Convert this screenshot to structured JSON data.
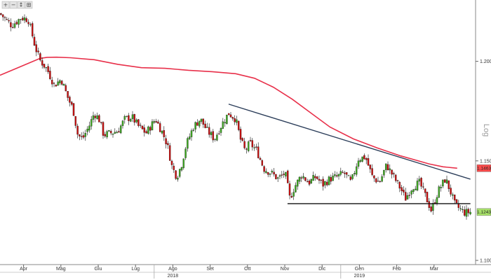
{
  "toolbar": {
    "buttons": [
      {
        "name": "zoom-in-button",
        "glyph": "+"
      },
      {
        "name": "zoom-out-button",
        "glyph": "−"
      },
      {
        "name": "reset-zoom-button",
        "glyph": "↕"
      },
      {
        "name": "crosshair-button",
        "glyph": "⊞"
      }
    ]
  },
  "chart_data": {
    "type": "candlestick",
    "x_labels": [
      "Apr",
      "Mag",
      "Giu",
      "Lug",
      "Ago",
      "Set",
      "Ott",
      "Nov",
      "Dic",
      "Gen",
      "Feb",
      "Mar"
    ],
    "years": [
      "2018",
      "2019"
    ],
    "y_ticks": [
      "1.2000",
      "1.1500",
      "1.1000"
    ],
    "scale_label": "Log",
    "ylim": [
      1.1,
      1.228
    ],
    "last_price": "1.1243",
    "ma_last": "1.1463",
    "colors": {
      "up": "#3faa22",
      "down": "#cc1010",
      "ma": "#e8304a",
      "trendline": "#2c3e5a",
      "support": "#111111",
      "price_tag": "#a9e36a",
      "ma_tag": "#ff4b4b"
    },
    "moving_average": [
      [
        0,
        1.193
      ],
      [
        0.03,
        1.196
      ],
      [
        0.06,
        1.199
      ],
      [
        0.085,
        1.2015
      ],
      [
        0.1,
        1.202
      ],
      [
        0.12,
        1.2021
      ],
      [
        0.15,
        1.2018
      ],
      [
        0.2,
        1.2008
      ],
      [
        0.25,
        1.1985
      ],
      [
        0.3,
        1.1968
      ],
      [
        0.35,
        1.1965
      ],
      [
        0.4,
        1.1955
      ],
      [
        0.45,
        1.1948
      ],
      [
        0.5,
        1.1938
      ],
      [
        0.54,
        1.1915
      ],
      [
        0.58,
        1.187
      ],
      [
        0.62,
        1.181
      ],
      [
        0.66,
        1.174
      ],
      [
        0.7,
        1.167
      ],
      [
        0.75,
        1.161
      ],
      [
        0.8,
        1.1565
      ],
      [
        0.85,
        1.1525
      ],
      [
        0.88,
        1.1505
      ],
      [
        0.91,
        1.1485
      ],
      [
        0.94,
        1.147
      ],
      [
        0.97,
        1.1463
      ]
    ],
    "trendline": [
      [
        0.485,
        1.1785
      ],
      [
        0.998,
        1.1408
      ]
    ],
    "support_line": [
      [
        0.61,
        1.1285
      ],
      [
        0.998,
        1.1285
      ]
    ],
    "close_path": [
      [
        0,
        1.224
      ],
      [
        0.025,
        1.218
      ],
      [
        0.045,
        1.222
      ],
      [
        0.06,
        1.221
      ],
      [
        0.075,
        1.207
      ],
      [
        0.085,
        1.2005
      ],
      [
        0.1,
        1.196
      ],
      [
        0.115,
        1.188
      ],
      [
        0.13,
        1.191
      ],
      [
        0.145,
        1.181
      ],
      [
        0.155,
        1.176
      ],
      [
        0.165,
        1.163
      ],
      [
        0.175,
        1.161
      ],
      [
        0.19,
        1.168
      ],
      [
        0.2,
        1.174
      ],
      [
        0.21,
        1.171
      ],
      [
        0.22,
        1.163
      ],
      [
        0.235,
        1.164
      ],
      [
        0.25,
        1.165
      ],
      [
        0.265,
        1.171
      ],
      [
        0.28,
        1.172
      ],
      [
        0.295,
        1.167
      ],
      [
        0.31,
        1.164
      ],
      [
        0.33,
        1.171
      ],
      [
        0.345,
        1.164
      ],
      [
        0.355,
        1.158
      ],
      [
        0.365,
        1.147
      ],
      [
        0.375,
        1.142
      ],
      [
        0.385,
        1.148
      ],
      [
        0.395,
        1.158
      ],
      [
        0.41,
        1.167
      ],
      [
        0.425,
        1.171
      ],
      [
        0.44,
        1.165
      ],
      [
        0.455,
        1.161
      ],
      [
        0.47,
        1.168
      ],
      [
        0.485,
        1.174
      ],
      [
        0.5,
        1.171
      ],
      [
        0.51,
        1.161
      ],
      [
        0.52,
        1.155
      ],
      [
        0.53,
        1.159
      ],
      [
        0.545,
        1.155
      ],
      [
        0.56,
        1.146
      ],
      [
        0.575,
        1.144
      ],
      [
        0.59,
        1.141
      ],
      [
        0.605,
        1.144
      ],
      [
        0.615,
        1.131
      ],
      [
        0.625,
        1.137
      ],
      [
        0.64,
        1.143
      ],
      [
        0.655,
        1.139
      ],
      [
        0.67,
        1.142
      ],
      [
        0.685,
        1.138
      ],
      [
        0.7,
        1.141
      ],
      [
        0.715,
        1.142
      ],
      [
        0.73,
        1.144
      ],
      [
        0.745,
        1.139
      ],
      [
        0.76,
        1.151
      ],
      [
        0.775,
        1.152
      ],
      [
        0.79,
        1.142
      ],
      [
        0.805,
        1.139
      ],
      [
        0.82,
        1.148
      ],
      [
        0.835,
        1.142
      ],
      [
        0.85,
        1.136
      ],
      [
        0.86,
        1.131
      ],
      [
        0.875,
        1.137
      ],
      [
        0.89,
        1.139
      ],
      [
        0.905,
        1.131
      ],
      [
        0.915,
        1.125
      ],
      [
        0.93,
        1.135
      ],
      [
        0.945,
        1.141
      ],
      [
        0.955,
        1.135
      ],
      [
        0.965,
        1.128
      ],
      [
        0.975,
        1.126
      ],
      [
        0.985,
        1.124
      ],
      [
        1.0,
        1.1243
      ]
    ]
  }
}
